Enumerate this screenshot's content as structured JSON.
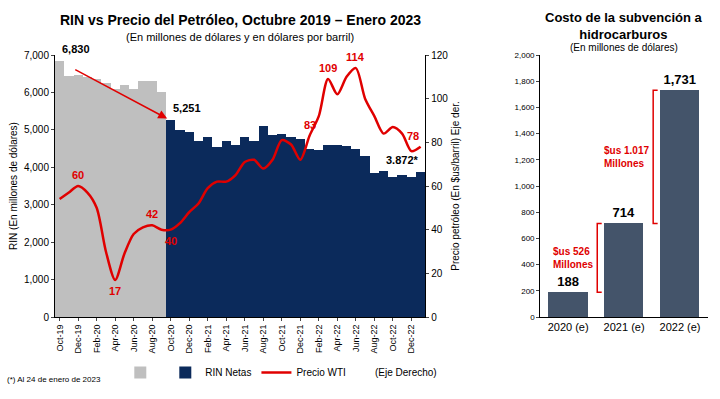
{
  "chart_data": [
    {
      "type": "combo",
      "title": "RIN vs Precio del Petróleo, Octubre 2019 – Enero 2023",
      "subtitle": "(En millones de dólares y en dólares por barril)",
      "y_label": "RIN (En millones de dólares)",
      "y2_label": "Precio petróleo (En $us/barril) Eje der.",
      "categories": [
        "Oct-19",
        null,
        "Dec-19",
        null,
        "Feb-20",
        null,
        "Apr-20",
        null,
        "Jun-20",
        null,
        "Aug-20",
        null,
        "Oct-20",
        null,
        "Dec-20",
        null,
        "Feb-21",
        null,
        "Apr-21",
        null,
        "Jun-21",
        null,
        "Aug-21",
        null,
        "Oct-21",
        null,
        "Dec-21",
        null,
        "Feb-22",
        null,
        "Apr-22",
        null,
        "Jun-22",
        null,
        "Aug-22",
        null,
        "Oct-22",
        null,
        "Dec-22",
        null
      ],
      "ylim": [
        0,
        7000
      ],
      "yticks": [
        0,
        {
          "value": 1000,
          "label": "1,000"
        },
        {
          "value": 2000,
          "label": "2,000"
        },
        {
          "value": 3000,
          "label": "3,000"
        },
        {
          "value": 4000,
          "label": "4,000"
        },
        {
          "value": 5000,
          "label": "5,000"
        },
        {
          "value": 6000,
          "label": "6,000"
        },
        {
          "value": 7000,
          "label": "7,000"
        }
      ],
      "y2lim": [
        0,
        120
      ],
      "y2ticks": [
        0,
        20,
        40,
        60,
        80,
        100,
        120
      ],
      "series": [
        {
          "type": "bar",
          "color": "#bfbfbf",
          "values": [
            6830,
            6450,
            6470,
            6400,
            6350,
            6250,
            6100,
            6200,
            6100,
            6300,
            6300,
            6000,
            null,
            null,
            null,
            null,
            null,
            null,
            null,
            null,
            null,
            null,
            null,
            null,
            null,
            null,
            null,
            null,
            null,
            null,
            null,
            null,
            null,
            null,
            null,
            null,
            null,
            null,
            null,
            null
          ],
          "value_labels": [
            "6,830",
            null,
            null,
            null,
            null,
            null,
            null,
            null,
            null,
            null,
            null,
            null,
            null,
            null,
            null,
            null,
            null,
            null,
            null,
            null,
            null,
            null,
            null,
            null,
            null,
            null,
            null,
            null,
            null,
            null,
            null,
            null,
            null,
            null,
            null,
            null,
            null,
            null,
            null,
            null
          ]
        },
        {
          "name": "RIN Netas",
          "type": "bar",
          "color": "#0b2a5b",
          "values": [
            null,
            null,
            null,
            null,
            null,
            null,
            null,
            null,
            null,
            null,
            null,
            null,
            5251,
            5000,
            4950,
            4700,
            4800,
            4550,
            4700,
            4600,
            4800,
            4700,
            5100,
            4850,
            4900,
            4800,
            4750,
            4500,
            4450,
            4600,
            4600,
            4580,
            4500,
            4300,
            3850,
            3900,
            3750,
            3800,
            3750,
            3872
          ],
          "value_labels": [
            null,
            null,
            null,
            null,
            null,
            null,
            null,
            null,
            null,
            null,
            null,
            null,
            "5,251",
            null,
            null,
            null,
            null,
            null,
            null,
            null,
            null,
            null,
            null,
            null,
            null,
            null,
            null,
            null,
            null,
            null,
            null,
            null,
            null,
            null,
            null,
            null,
            null,
            null,
            null,
            "3.872*"
          ]
        },
        {
          "name": "Precio WTI",
          "type": "line",
          "axis": "y2",
          "color": "#e00000",
          "values": [
            54,
            57,
            60,
            57,
            50,
            30,
            17,
            29,
            38,
            41,
            42,
            40,
            40,
            43,
            48,
            52,
            59,
            62,
            62,
            65,
            71,
            72,
            68,
            72,
            81,
            79,
            72,
            83,
            92,
            109,
            102,
            110,
            114,
            100,
            92,
            84,
            87,
            84,
            76,
            78
          ],
          "value_labels": [
            null,
            null,
            "60",
            null,
            null,
            null,
            "17",
            null,
            null,
            null,
            "42",
            null,
            "40",
            null,
            null,
            null,
            null,
            null,
            null,
            null,
            null,
            null,
            null,
            null,
            null,
            null,
            null,
            "83",
            null,
            "109",
            null,
            null,
            "114",
            null,
            null,
            null,
            null,
            null,
            null,
            "78"
          ]
        }
      ],
      "legend": "bottom",
      "legend_note": "(Eje Derecho)",
      "footnote": "(*) Al 24 de enero de 2023",
      "grid": false,
      "data_labels": true
    },
    {
      "type": "bar",
      "title": "Costo de la subvención a hidrocarburos",
      "subtitle": "(En millones de dólares)",
      "categories": [
        "2020 (e)",
        "2021 (e)",
        "2022 (e)"
      ],
      "values": [
        188,
        714,
        1731
      ],
      "value_labels": [
        "188",
        "714",
        "1,731"
      ],
      "color": "#44546a",
      "ylim": [
        0,
        2000
      ],
      "yticks": [
        0,
        200,
        400,
        600,
        800,
        {
          "value": 1000,
          "label": "1,000"
        },
        {
          "value": 1200,
          "label": "1,200"
        },
        {
          "value": 1400,
          "label": "1,400"
        },
        {
          "value": 1600,
          "label": "1,600"
        },
        {
          "value": 1800,
          "label": "1,800"
        },
        {
          "value": 2000,
          "label": "2,000"
        }
      ],
      "differences": [
        {
          "value": 526,
          "label": [
            "$us 526",
            "Millones"
          ]
        },
        {
          "value": 1017,
          "label": [
            "$us 1.017",
            "Millones"
          ]
        }
      ],
      "grid": false,
      "data_labels": true
    }
  ]
}
